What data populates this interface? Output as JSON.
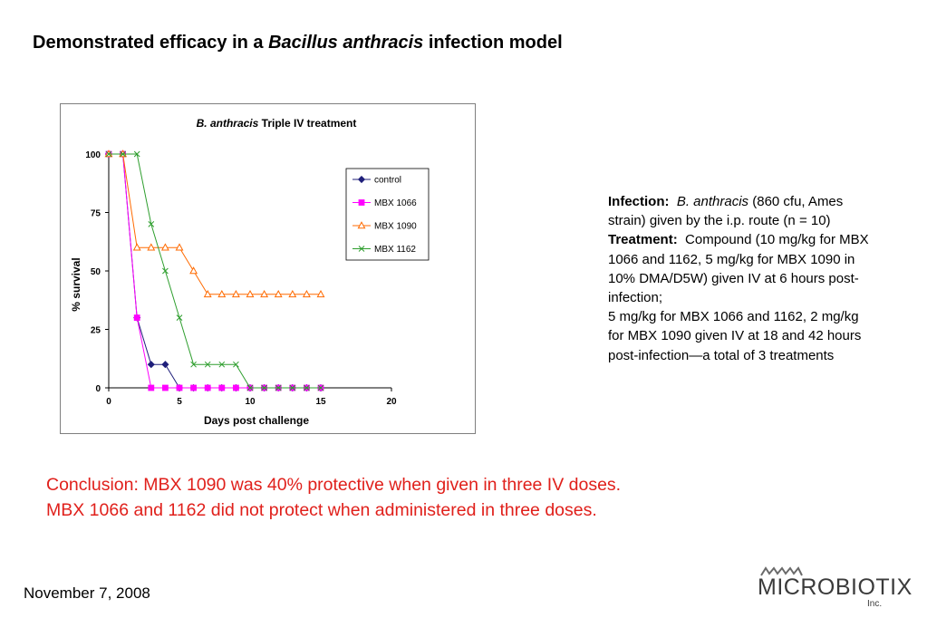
{
  "slide": {
    "title_pre": "Demonstrated efficacy in a ",
    "title_italic": "Bacillus anthracis",
    "title_post": " infection model",
    "date": "November 7, 2008",
    "logo_text": "MICROBIOTIX",
    "logo_inc": "Inc."
  },
  "info": {
    "infection_label": "Infection:",
    "infection_italic": "B. anthracis",
    "infection_text": " (860 cfu, Ames strain) given by the i.p. route (n = 10)",
    "treatment_label": "Treatment:",
    "treatment_text": "Compound (10 mg/kg for MBX 1066 and 1162, 5 mg/kg for MBX 1090 in 10% DMA/D5W) given IV at 6 hours post-infection;",
    "treatment_text2": "5 mg/kg for MBX 1066 and 1162, 2 mg/kg for MBX 1090 given IV at 18 and 42 hours post-infection—a total of 3 treatments"
  },
  "conclusion": {
    "line1": "Conclusion:  MBX 1090 was 40% protective when given in three IV doses.",
    "line2": "MBX 1066 and 1162 did not protect when administered in three doses.",
    "color": "#e0201b"
  },
  "chart_data": {
    "type": "line",
    "title_italic": "B. anthracis",
    "title": " Triple IV treatment",
    "xlabel": "Days post challenge",
    "ylabel": "% survival",
    "xlim": [
      0,
      20
    ],
    "ylim": [
      0,
      100
    ],
    "xticks": [
      0,
      5,
      10,
      15,
      20
    ],
    "yticks": [
      0,
      25,
      50,
      75,
      100
    ],
    "grid": false,
    "legend_position": "right",
    "x": [
      0,
      1,
      2,
      3,
      4,
      5,
      6,
      7,
      8,
      9,
      10,
      11,
      12,
      13,
      14,
      15
    ],
    "series": [
      {
        "name": "control",
        "color": "#1f1f7a",
        "marker": "diamond",
        "values": [
          100,
          100,
          30,
          10,
          10,
          0,
          0,
          0,
          0,
          0,
          0,
          0,
          0,
          0,
          0,
          0
        ]
      },
      {
        "name": "MBX 1066",
        "color": "#ff00ff",
        "marker": "square",
        "values": [
          100,
          100,
          30,
          0,
          0,
          0,
          0,
          0,
          0,
          0,
          0,
          0,
          0,
          0,
          0,
          0
        ]
      },
      {
        "name": "MBX 1090",
        "color": "#ff6a00",
        "marker": "triangle",
        "values": [
          100,
          100,
          60,
          60,
          60,
          60,
          50,
          40,
          40,
          40,
          40,
          40,
          40,
          40,
          40,
          40
        ]
      },
      {
        "name": "MBX 1162",
        "color": "#2e9e2e",
        "marker": "x",
        "values": [
          100,
          100,
          100,
          70,
          50,
          30,
          10,
          10,
          10,
          10,
          0,
          0,
          0,
          0,
          0,
          0
        ]
      }
    ]
  }
}
